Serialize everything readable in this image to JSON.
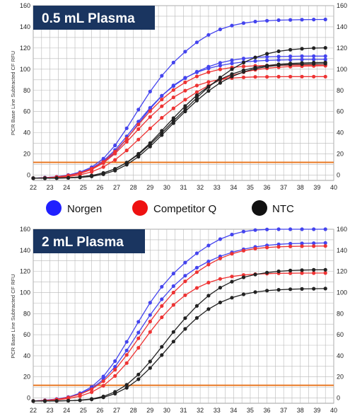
{
  "legend": {
    "items": [
      {
        "label": "Norgen",
        "color": "#2020ff"
      },
      {
        "label": "Competitor Q",
        "color": "#ee1111"
      },
      {
        "label": "NTC",
        "color": "#111111"
      }
    ]
  },
  "colors": {
    "grid": "#b8b8b8",
    "threshold": "#e87722",
    "title_box": "#1a3560",
    "norgen_line": "#4444ee",
    "competitor_line": "#ee3333",
    "ntc_line": "#222222"
  },
  "chart_data": [
    {
      "type": "line",
      "title": "0.5 mL Plasma",
      "ylabel": "PCR Base Line Subtracted CF RFU",
      "xlim": [
        22,
        40
      ],
      "ylim": [
        -5,
        160
      ],
      "xticks": [
        "22",
        "23",
        "24",
        "25",
        "26",
        "27",
        "28",
        "29",
        "30",
        "31",
        "32",
        "33",
        "34",
        "35",
        "36",
        "37",
        "38",
        "39",
        "40"
      ],
      "yticks": [
        "0",
        "20",
        "40",
        "60",
        "80",
        "100",
        "120",
        "140",
        "160"
      ],
      "threshold": 12,
      "x": [
        22,
        22.7,
        23.4,
        24.1,
        24.8,
        25.5,
        26.2,
        26.9,
        27.6,
        28.3,
        29,
        29.7,
        30.4,
        31.1,
        31.8,
        32.5,
        33.2,
        33.9,
        34.6,
        35.3,
        36,
        36.7,
        37.4,
        38.1,
        38.8,
        39.5
      ],
      "series": [
        {
          "group": "Norgen",
          "values": [
            -2.9,
            -2.3,
            -1.5,
            0.1,
            2.8,
            7.5,
            15.6,
            28.1,
            44.2,
            61.9,
            78.9,
            93.8,
            106.3,
            116.6,
            125.4,
            132.4,
            137.6,
            141.2,
            143.5,
            145,
            145.8,
            146.3,
            146.6,
            146.8,
            146.9,
            147
          ]
        },
        {
          "group": "Norgen",
          "values": [
            -2.9,
            -2.5,
            -1.8,
            -0.6,
            1.6,
            5.4,
            11.7,
            21.4,
            34.2,
            48.7,
            62.6,
            74.9,
            84.7,
            91.9,
            97.1,
            100.8,
            103.5,
            105.5,
            106.8,
            107.7,
            108.3,
            108.7,
            108.9,
            109.1,
            109.2,
            109.2
          ]
        },
        {
          "group": "Norgen",
          "values": [
            -2.9,
            -2.4,
            -1.6,
            -0.2,
            2.3,
            6.5,
            13.4,
            23.7,
            36.6,
            50.6,
            63.6,
            74.9,
            84.1,
            91.6,
            97.6,
            102.4,
            106,
            108.5,
            110.1,
            111.1,
            111.7,
            112,
            112.2,
            112.3,
            112.4,
            112.4
          ]
        },
        {
          "group": "Competitor Q",
          "values": [
            -2.9,
            -2.6,
            -1.9,
            -0.6,
            1.5,
            5.3,
            11.4,
            20.3,
            31.4,
            43.4,
            54.9,
            65,
            73.4,
            79.8,
            84.6,
            88,
            90.3,
            91.6,
            92.3,
            92.7,
            92.8,
            92.9,
            93,
            93,
            93,
            93
          ]
        },
        {
          "group": "Competitor Q",
          "values": [
            -2.9,
            -2.5,
            -1.7,
            -0.3,
            2,
            6,
            12.5,
            22.2,
            34.4,
            47.8,
            60.4,
            71.4,
            80.4,
            87.6,
            93.2,
            97.2,
            99.9,
            101.6,
            102.6,
            103.2,
            103.5,
            103.7,
            103.8,
            103.9,
            103.9,
            103.9
          ]
        },
        {
          "group": "Competitor Q",
          "values": [
            -2.9,
            -2.7,
            -2.3,
            -1.4,
            0.3,
            3.1,
            7.7,
            14.4,
            23.3,
            33.6,
            44.1,
            54.1,
            63.1,
            71.2,
            78.4,
            84.6,
            89.9,
            94,
            97.2,
            99.4,
            100.9,
            101.9,
            102.5,
            102.9,
            103.1,
            103.3
          ]
        },
        {
          "group": "NTC",
          "values": [
            -2.9,
            -2.9,
            -2.8,
            -2.5,
            -1.8,
            -0.4,
            2,
            5.9,
            11.7,
            19.5,
            29,
            39.8,
            51.1,
            62.2,
            73,
            83.1,
            92.2,
            100,
            106.3,
            111.1,
            114.6,
            116.9,
            118.4,
            119.3,
            119.9,
            120.2
          ]
        },
        {
          "group": "NTC",
          "values": [
            -2.9,
            -2.9,
            -2.8,
            -2.6,
            -2.2,
            -1.2,
            0.8,
            4.3,
            9.8,
            17.4,
            26.9,
            37.8,
            49.1,
            60.1,
            70.4,
            79.5,
            87.1,
            93.1,
            97.5,
            100.5,
            102.5,
            103.7,
            104.4,
            104.8,
            105,
            105.2
          ]
        },
        {
          "group": "NTC",
          "values": [
            -2.9,
            -2.9,
            -2.8,
            -2.5,
            -1.8,
            -0.4,
            2,
            5.9,
            11.9,
            20.1,
            30.3,
            41.9,
            53.8,
            65.2,
            75.4,
            83.8,
            90.4,
            95.4,
            99,
            101.6,
            103.4,
            104.6,
            105.4,
            105.9,
            106.2,
            106.4
          ]
        }
      ]
    },
    {
      "type": "line",
      "title": "2 mL Plasma",
      "ylabel": "PCR Base Line Subtracted CF RFU",
      "xlim": [
        22,
        40
      ],
      "ylim": [
        -5,
        160
      ],
      "xticks": [
        "22",
        "23",
        "24",
        "25",
        "26",
        "27",
        "28",
        "29",
        "30",
        "31",
        "32",
        "33",
        "34",
        "35",
        "36",
        "37",
        "38",
        "39",
        "40"
      ],
      "yticks": [
        "0",
        "20",
        "40",
        "60",
        "80",
        "100",
        "120",
        "140",
        "160"
      ],
      "threshold": 12,
      "x": [
        22,
        22.7,
        23.4,
        24.1,
        24.8,
        25.5,
        26.2,
        26.9,
        27.6,
        28.3,
        29,
        29.7,
        30.4,
        31.1,
        31.8,
        32.5,
        33.2,
        33.9,
        34.6,
        35.3,
        36,
        36.7,
        37.4,
        38.1,
        38.8,
        39.5
      ],
      "series": [
        {
          "group": "Norgen",
          "values": [
            -2.9,
            -2.1,
            -1,
            0.9,
            4.5,
            10.5,
            20.4,
            35,
            53.2,
            72.3,
            90.3,
            105.5,
            118,
            128.4,
            137.2,
            144.6,
            150.6,
            155,
            157.8,
            159.2,
            159.8,
            160,
            160,
            160,
            160,
            160
          ]
        },
        {
          "group": "Norgen",
          "values": [
            -2.9,
            -2.2,
            -1.2,
            0.7,
            3.9,
            9.1,
            17.5,
            29.7,
            45.1,
            62.1,
            78.7,
            93.6,
            106.1,
            115.9,
            123.5,
            129.5,
            134.3,
            138.1,
            141,
            143.2,
            144.7,
            145.7,
            146.3,
            146.6,
            146.8,
            147
          ]
        },
        {
          "group": "Competitor Q",
          "values": [
            -2.9,
            -2.3,
            -1.3,
            0.5,
            3.5,
            8.3,
            15.9,
            26.8,
            40.8,
            56.6,
            72.5,
            87.2,
            100,
            110.6,
            119.3,
            126.5,
            132.3,
            136.7,
            139.7,
            141.6,
            142.7,
            143.3,
            143.7,
            143.9,
            144,
            144.1
          ]
        },
        {
          "group": "Competitor Q",
          "values": [
            -2.9,
            -2.5,
            -1.8,
            -0.5,
            1.7,
            5.5,
            11.7,
            20.9,
            33.1,
            47.6,
            62.6,
            76.5,
            88.2,
            97.4,
            104.3,
            109.4,
            112.9,
            115.2,
            116.6,
            117.4,
            117.9,
            118.2,
            118.3,
            118.4,
            118.4,
            118.5
          ]
        },
        {
          "group": "NTC",
          "values": [
            -2.9,
            -2.9,
            -2.8,
            -2.6,
            -2.1,
            -0.9,
            1.5,
            5.8,
            12.6,
            22.3,
            34.6,
            48.5,
            62.6,
            75.7,
            87.3,
            97,
            104.6,
            110.3,
            114.4,
            117.1,
            118.9,
            120.1,
            120.8,
            121.2,
            121.5,
            121.6
          ]
        },
        {
          "group": "NTC",
          "values": [
            -2.9,
            -2.9,
            -2.8,
            -2.6,
            -2.2,
            -1.3,
            0.6,
            4.1,
            9.7,
            17.8,
            28.4,
            40.7,
            53.5,
            65.5,
            75.9,
            84.3,
            90.6,
            95.1,
            98.3,
            100.4,
            101.8,
            102.6,
            103.1,
            103.4,
            103.6,
            103.7
          ]
        }
      ]
    }
  ]
}
